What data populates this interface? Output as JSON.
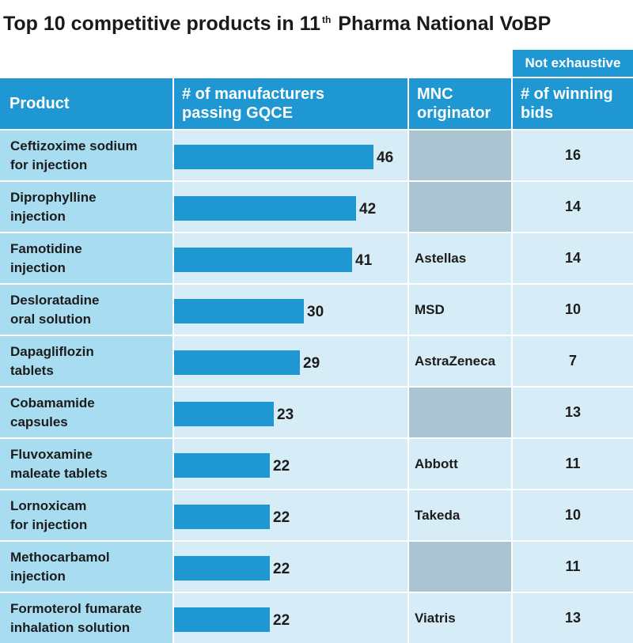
{
  "title": {
    "main": "Top 10 competitive products in 11",
    "sup": "th",
    "rest": " Pharma National VoBP"
  },
  "note": "Not exhaustive",
  "headers": {
    "product": "Product",
    "manufacturers": "# of manufacturers\npassing GQCE",
    "mnc": "MNC\noriginator",
    "bids": "# of winning\nbids"
  },
  "chart_data": {
    "type": "table",
    "title": "Top 10 competitive products in 11th Pharma National VoBP",
    "columns": [
      "Product",
      "# of manufacturers passing GQCE",
      "MNC originator",
      "# of winning bids"
    ],
    "rows": [
      {
        "product": "Ceftizoxime sodium\nfor injection",
        "manufacturers": 46,
        "mnc": "",
        "bids": 16
      },
      {
        "product": "Diprophylline\ninjection",
        "manufacturers": 42,
        "mnc": "",
        "bids": 14
      },
      {
        "product": "Famotidine\ninjection",
        "manufacturers": 41,
        "mnc": "Astellas",
        "bids": 14
      },
      {
        "product": "Desloratadine\noral solution",
        "manufacturers": 30,
        "mnc": "MSD",
        "bids": 10
      },
      {
        "product": "Dapagliflozin\ntablets",
        "manufacturers": 29,
        "mnc": "AstraZeneca",
        "bids": 7
      },
      {
        "product": "Cobamamide\ncapsules",
        "manufacturers": 23,
        "mnc": "",
        "bids": 13
      },
      {
        "product": "Fluvoxamine\nmaleate tablets",
        "manufacturers": 22,
        "mnc": "Abbott",
        "bids": 11
      },
      {
        "product": "Lornoxicam\nfor injection",
        "manufacturers": 22,
        "mnc": "Takeda",
        "bids": 10
      },
      {
        "product": "Methocarbamol\ninjection",
        "manufacturers": 22,
        "mnc": "",
        "bids": 11
      },
      {
        "product": "Formoterol fumarate\ninhalation solution",
        "manufacturers": 22,
        "mnc": "Viatris",
        "bids": 13
      }
    ],
    "bar_scale_max": 46,
    "colors": {
      "bar": "#1e97d3",
      "header": "#1e97d3",
      "product_cell": "#a8dcf1",
      "cell": "#d6edf8",
      "empty_mnc": "#abc4d2"
    }
  }
}
